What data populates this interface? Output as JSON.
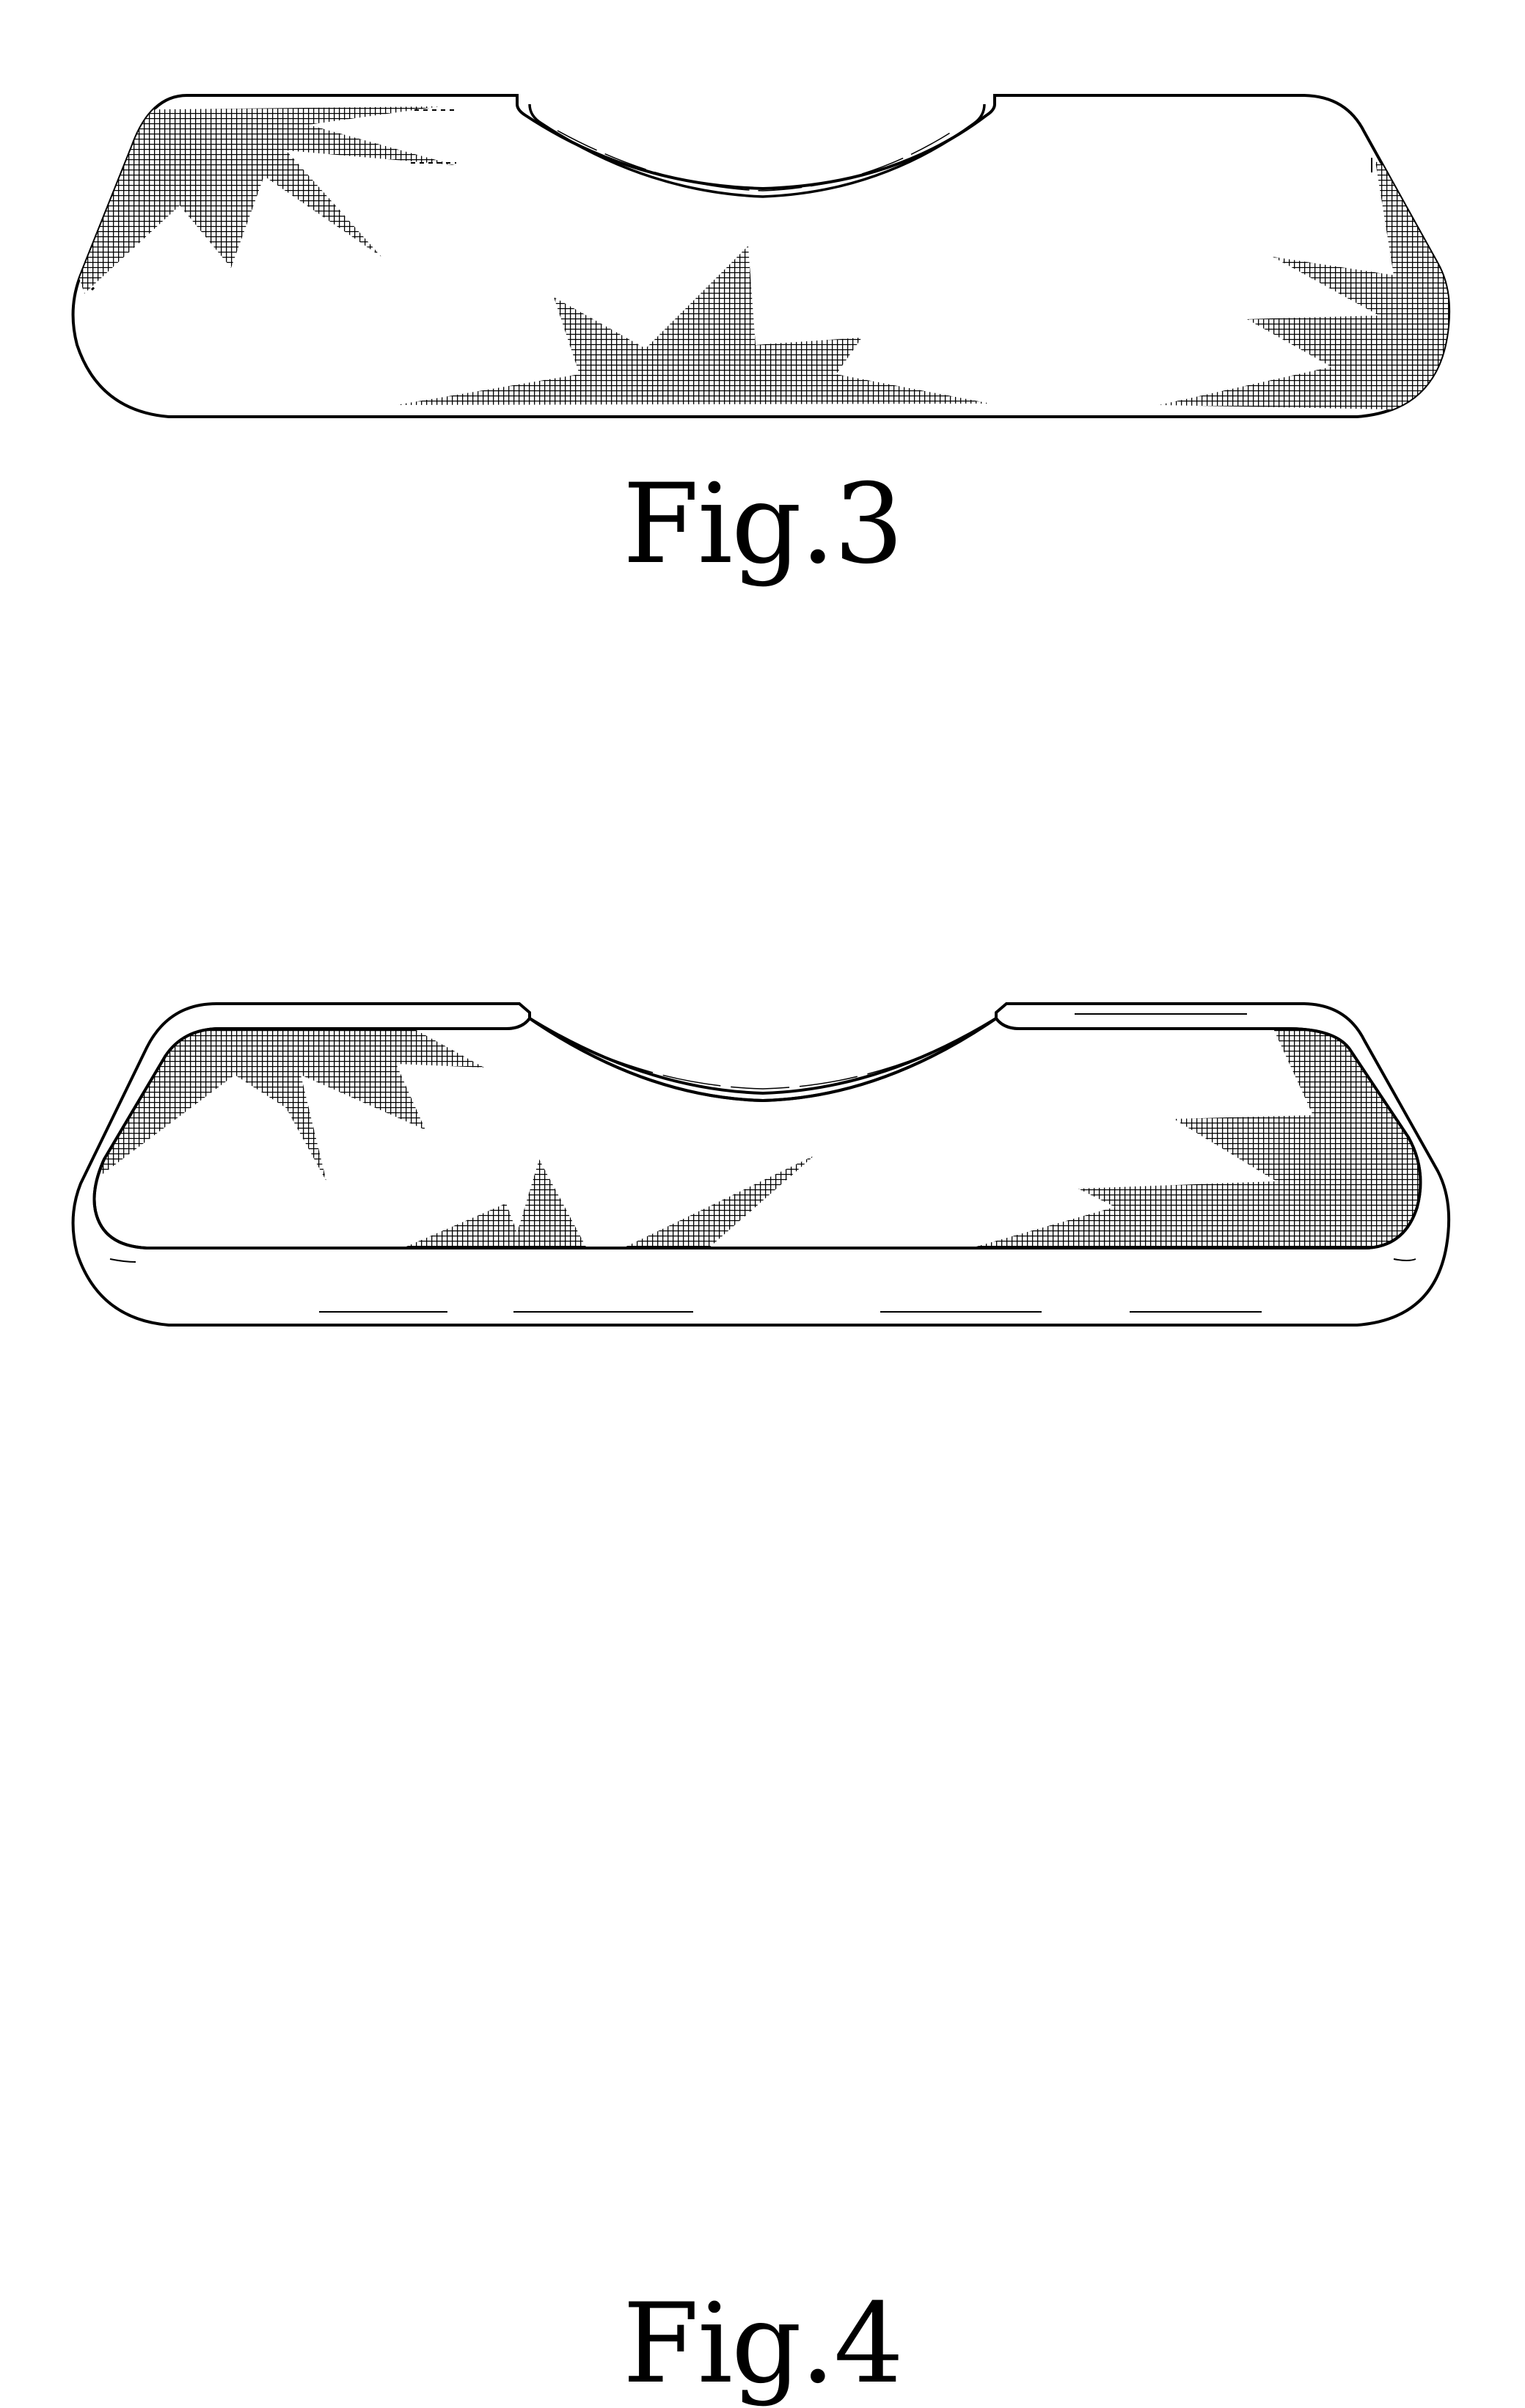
{
  "figures": [
    {
      "id": "fig3",
      "caption": "Fig.3"
    },
    {
      "id": "fig4",
      "caption": "Fig.4"
    }
  ],
  "colors": {
    "line": "#000000",
    "paper": "#ffffff",
    "hatch": "#000000"
  }
}
